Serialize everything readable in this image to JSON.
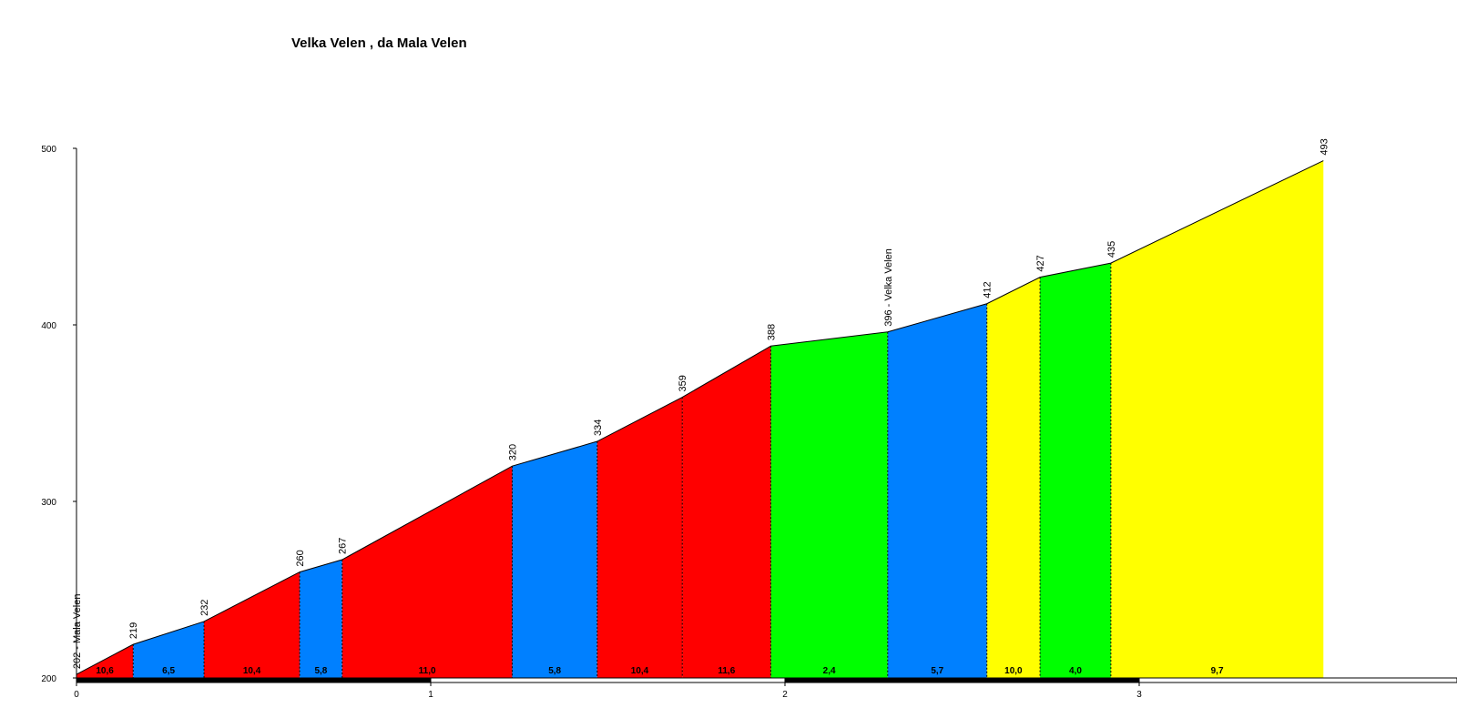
{
  "chart_data": {
    "type": "area",
    "title": "Velka Velen , da Mala Velen",
    "xlabel": "",
    "ylabel": "",
    "xlim": [
      0,
      3.9
    ],
    "ylim": [
      200,
      500
    ],
    "yticks": [
      "200",
      "300",
      "400",
      "500"
    ],
    "xticks": [
      "0",
      "1",
      "2",
      "3"
    ],
    "grid": false,
    "colors": {
      "red": "#ff0000",
      "blue": "#0080ff",
      "green": "#00ff00",
      "yellow": "#ffff00"
    },
    "points": [
      {
        "x": 0.0,
        "y": 202,
        "label": "202 - Mala Velen"
      },
      {
        "x": 0.16,
        "y": 219,
        "label": "219"
      },
      {
        "x": 0.36,
        "y": 232,
        "label": "232"
      },
      {
        "x": 0.63,
        "y": 260,
        "label": "260"
      },
      {
        "x": 0.75,
        "y": 267,
        "label": "267"
      },
      {
        "x": 1.23,
        "y": 320,
        "label": "320"
      },
      {
        "x": 1.47,
        "y": 334,
        "label": "334"
      },
      {
        "x": 1.71,
        "y": 359,
        "label": "359"
      },
      {
        "x": 1.96,
        "y": 388,
        "label": "388"
      },
      {
        "x": 2.29,
        "y": 396,
        "label": "396 - Velka Velen"
      },
      {
        "x": 2.57,
        "y": 412,
        "label": "412"
      },
      {
        "x": 2.72,
        "y": 427,
        "label": "427"
      },
      {
        "x": 2.92,
        "y": 435,
        "label": "435"
      },
      {
        "x": 3.52,
        "y": 493,
        "label": "493"
      }
    ],
    "segments": [
      {
        "grade": "10,6",
        "color": "red"
      },
      {
        "grade": "6,5",
        "color": "blue"
      },
      {
        "grade": "10,4",
        "color": "red"
      },
      {
        "grade": "5,8",
        "color": "blue"
      },
      {
        "grade": "11,0",
        "color": "red"
      },
      {
        "grade": "5,8",
        "color": "blue"
      },
      {
        "grade": "10,4",
        "color": "red"
      },
      {
        "grade": "11,6",
        "color": "red"
      },
      {
        "grade": "2,4",
        "color": "green"
      },
      {
        "grade": "5,7",
        "color": "blue"
      },
      {
        "grade": "10,0",
        "color": "yellow"
      },
      {
        "grade": "4,0",
        "color": "green"
      },
      {
        "grade": "9,7",
        "color": "yellow"
      }
    ]
  }
}
